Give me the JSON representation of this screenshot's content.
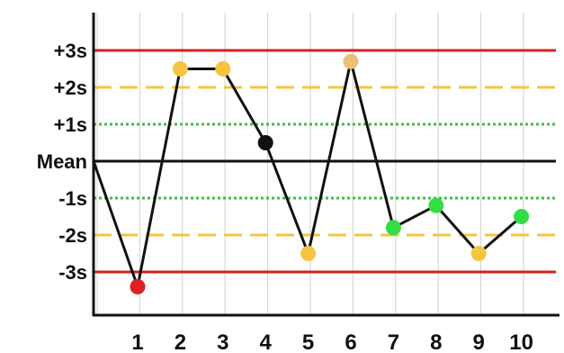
{
  "chart_data": {
    "type": "line",
    "title": "",
    "xlabel": "",
    "ylabel": "",
    "y_levels": [
      {
        "label": "+3s",
        "value": 3
      },
      {
        "label": "+2s",
        "value": 2
      },
      {
        "label": "+1s",
        "value": 1
      },
      {
        "label": "Mean",
        "value": 0
      },
      {
        "label": "-1s",
        "value": -1
      },
      {
        "label": "-2s",
        "value": -2
      },
      {
        "label": "-3s",
        "value": -3
      }
    ],
    "x": [
      1,
      2,
      3,
      4,
      5,
      6,
      7,
      8,
      9,
      10
    ],
    "x_tick_labels": [
      "1",
      "2",
      "3",
      "4",
      "5",
      "6",
      "7",
      "8",
      "9",
      "10"
    ],
    "series": [
      {
        "start_value": 0,
        "values": [
          -3.4,
          2.5,
          2.5,
          0.5,
          -2.5,
          2.7,
          -1.8,
          -1.2,
          -2.5,
          -1.5
        ],
        "point_colors": [
          "#e02020",
          "#f5c542",
          "#f5c542",
          "#111111",
          "#f5c542",
          "#e8c078",
          "#33dd44",
          "#33dd44",
          "#f5c542",
          "#33dd44"
        ]
      }
    ],
    "control_lines": [
      {
        "value": 3,
        "color": "#d42020",
        "style": "solid"
      },
      {
        "value": -3,
        "color": "#d42020",
        "style": "solid"
      },
      {
        "value": 2,
        "color": "#f5c542",
        "style": "dashed"
      },
      {
        "value": -2,
        "color": "#f5c542",
        "style": "dashed"
      },
      {
        "value": 1,
        "color": "#44bb44",
        "style": "dotted"
      },
      {
        "value": -1,
        "color": "#44bb44",
        "style": "dotted"
      },
      {
        "value": 0,
        "color": "#111111",
        "style": "solid"
      }
    ],
    "ylim": [
      -4,
      4
    ],
    "grid": true
  }
}
